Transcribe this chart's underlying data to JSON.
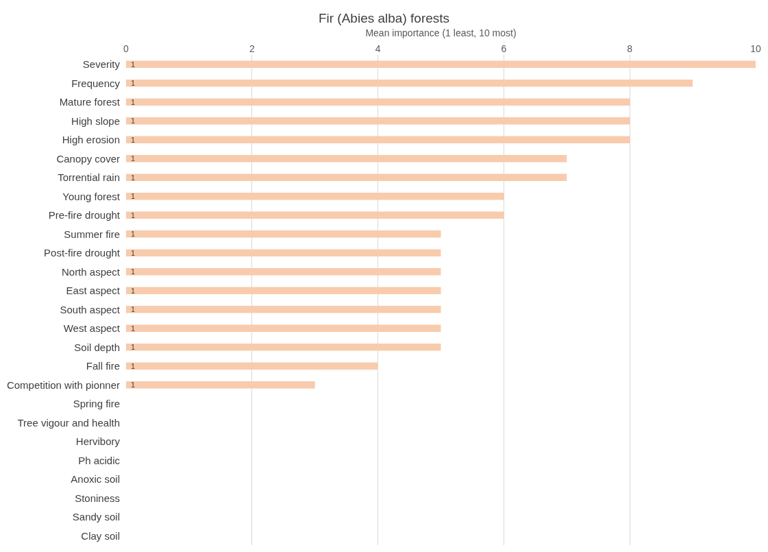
{
  "chart_data": {
    "type": "bar",
    "orientation": "horizontal",
    "title": "Fir (Abies alba) forests",
    "xlabel": "Mean importance (1 least, 10 most)",
    "categories": [
      "Severity",
      "Frequency",
      "Mature forest",
      "High slope",
      "High erosion",
      "Canopy cover",
      "Torrential rain",
      "Young forest",
      "Pre-fire drought",
      "Summer fire",
      "Post-fire drought",
      "North aspect",
      "East aspect",
      "South aspect",
      "West aspect",
      "Soil depth",
      "Fall fire",
      "Competition with pionner",
      "Spring fire",
      "Tree vigour and health",
      "Hervibory",
      "Ph acidic",
      "Anoxic soil",
      "Stoniness",
      "Sandy soil",
      "Clay soil"
    ],
    "values": [
      10,
      9,
      8,
      8,
      8,
      7,
      7,
      6,
      6,
      5,
      5,
      5,
      5,
      5,
      5,
      5,
      4,
      3,
      0,
      0,
      0,
      0,
      0,
      0,
      0,
      0
    ],
    "annotations": [
      {
        "text": "1",
        "y": "Severity"
      },
      {
        "text": "1",
        "y": "Frequency"
      },
      {
        "text": "1",
        "y": "Mature forest"
      },
      {
        "text": "1",
        "y": "High slope"
      },
      {
        "text": "1",
        "y": "High erosion"
      },
      {
        "text": "1",
        "y": "Canopy cover"
      },
      {
        "text": "1",
        "y": "Torrential rain"
      },
      {
        "text": "1",
        "y": "Young forest"
      },
      {
        "text": "1",
        "y": "Pre-fire drought"
      },
      {
        "text": "1",
        "y": "Summer fire"
      },
      {
        "text": "1",
        "y": "Post-fire drought"
      },
      {
        "text": "1",
        "y": "North aspect"
      },
      {
        "text": "1",
        "y": "East aspect"
      },
      {
        "text": "1",
        "y": "South aspect"
      },
      {
        "text": "1",
        "y": "West aspect"
      },
      {
        "text": "1",
        "y": "Soil depth"
      },
      {
        "text": "1",
        "y": "Fall fire"
      },
      {
        "text": "1",
        "y": "Competition with pionner"
      }
    ],
    "color": "#f8cbad",
    "xlim": [
      0,
      10
    ],
    "xticks": [
      0,
      2,
      4,
      6,
      8,
      10
    ],
    "grid": "x"
  }
}
